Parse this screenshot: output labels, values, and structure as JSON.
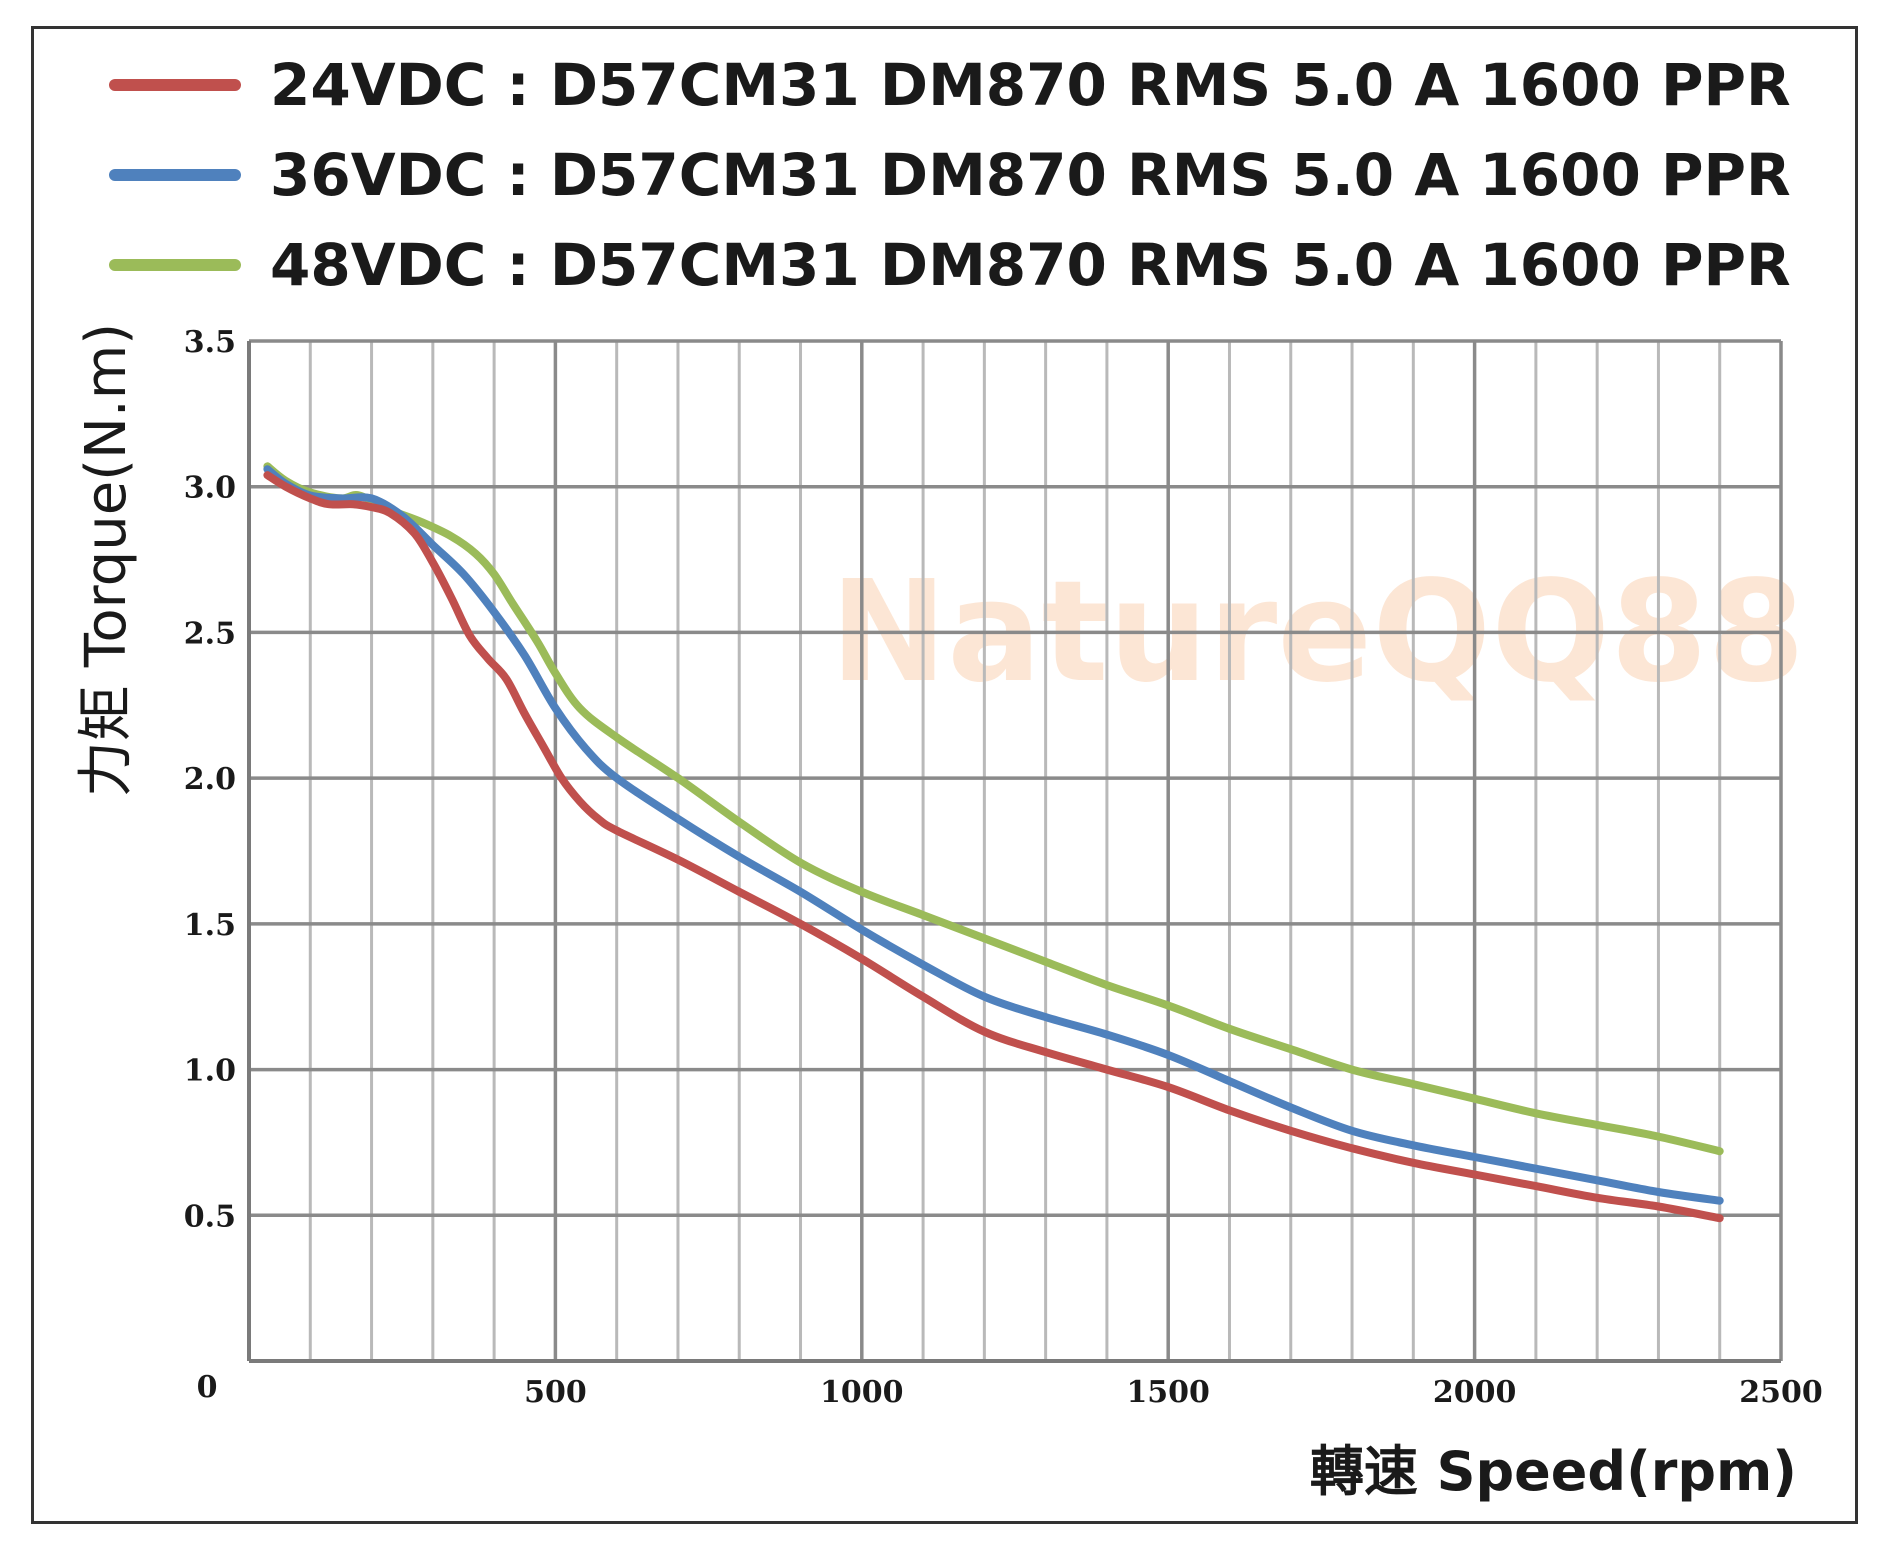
{
  "chart_data": {
    "type": "line",
    "title": "",
    "xlabel": "轉速 Speed(rpm)",
    "ylabel": "力矩 Torque(N.m)",
    "xlim": [
      0,
      2500
    ],
    "ylim": [
      0,
      3.5
    ],
    "x_ticks": [
      "0",
      "500",
      "1000",
      "1500",
      "2000",
      "2500"
    ],
    "y_ticks": [
      "0.5",
      "1.0",
      "1.5",
      "2.0",
      "2.5",
      "3.0",
      "3.5"
    ],
    "grid": true,
    "legend_position": "top",
    "watermark": "NatureQQ88",
    "series": [
      {
        "name": "24VDC : D57CM31  DM870  RMS 5.0 A  1600 PPR",
        "color": "#c0504d",
        "points": [
          [
            30,
            3.04
          ],
          [
            60,
            3.0
          ],
          [
            100,
            2.96
          ],
          [
            130,
            2.94
          ],
          [
            170,
            2.94
          ],
          [
            200,
            2.93
          ],
          [
            230,
            2.91
          ],
          [
            270,
            2.84
          ],
          [
            300,
            2.74
          ],
          [
            330,
            2.62
          ],
          [
            360,
            2.49
          ],
          [
            390,
            2.41
          ],
          [
            420,
            2.34
          ],
          [
            450,
            2.22
          ],
          [
            480,
            2.11
          ],
          [
            510,
            2.0
          ],
          [
            540,
            1.92
          ],
          [
            570,
            1.86
          ],
          [
            600,
            1.82
          ],
          [
            700,
            1.72
          ],
          [
            800,
            1.61
          ],
          [
            900,
            1.5
          ],
          [
            1000,
            1.38
          ],
          [
            1100,
            1.25
          ],
          [
            1200,
            1.13
          ],
          [
            1300,
            1.06
          ],
          [
            1400,
            1.0
          ],
          [
            1500,
            0.94
          ],
          [
            1600,
            0.86
          ],
          [
            1700,
            0.79
          ],
          [
            1800,
            0.73
          ],
          [
            1900,
            0.68
          ],
          [
            2000,
            0.64
          ],
          [
            2100,
            0.6
          ],
          [
            2200,
            0.56
          ],
          [
            2300,
            0.53
          ],
          [
            2400,
            0.49
          ]
        ]
      },
      {
        "name": "36VDC : D57CM31  DM870  RMS 5.0 A  1600 PPR",
        "color": "#4f81bd",
        "points": [
          [
            30,
            3.06
          ],
          [
            60,
            3.01
          ],
          [
            100,
            2.97
          ],
          [
            150,
            2.96
          ],
          [
            200,
            2.96
          ],
          [
            250,
            2.9
          ],
          [
            300,
            2.8
          ],
          [
            350,
            2.7
          ],
          [
            400,
            2.57
          ],
          [
            450,
            2.42
          ],
          [
            500,
            2.24
          ],
          [
            550,
            2.1
          ],
          [
            600,
            2.0
          ],
          [
            700,
            1.86
          ],
          [
            800,
            1.73
          ],
          [
            900,
            1.61
          ],
          [
            1000,
            1.48
          ],
          [
            1100,
            1.36
          ],
          [
            1200,
            1.25
          ],
          [
            1300,
            1.18
          ],
          [
            1400,
            1.12
          ],
          [
            1500,
            1.05
          ],
          [
            1600,
            0.96
          ],
          [
            1700,
            0.87
          ],
          [
            1800,
            0.79
          ],
          [
            1900,
            0.74
          ],
          [
            2000,
            0.7
          ],
          [
            2100,
            0.66
          ],
          [
            2200,
            0.62
          ],
          [
            2300,
            0.58
          ],
          [
            2400,
            0.55
          ]
        ]
      },
      {
        "name": "48VDC : D57CM31  DM870  RMS 5.0 A  1600 PPR",
        "color": "#9bbb59",
        "points": [
          [
            30,
            3.07
          ],
          [
            60,
            3.02
          ],
          [
            100,
            2.98
          ],
          [
            150,
            2.96
          ],
          [
            180,
            2.97
          ],
          [
            230,
            2.92
          ],
          [
            280,
            2.88
          ],
          [
            330,
            2.83
          ],
          [
            370,
            2.77
          ],
          [
            400,
            2.7
          ],
          [
            430,
            2.6
          ],
          [
            470,
            2.47
          ],
          [
            500,
            2.36
          ],
          [
            540,
            2.24
          ],
          [
            600,
            2.14
          ],
          [
            700,
            2.0
          ],
          [
            800,
            1.85
          ],
          [
            900,
            1.71
          ],
          [
            1000,
            1.61
          ],
          [
            1100,
            1.53
          ],
          [
            1200,
            1.45
          ],
          [
            1300,
            1.37
          ],
          [
            1400,
            1.29
          ],
          [
            1500,
            1.22
          ],
          [
            1600,
            1.14
          ],
          [
            1700,
            1.07
          ],
          [
            1800,
            1.0
          ],
          [
            1900,
            0.95
          ],
          [
            2000,
            0.9
          ],
          [
            2100,
            0.85
          ],
          [
            2200,
            0.81
          ],
          [
            2300,
            0.77
          ],
          [
            2400,
            0.72
          ]
        ]
      }
    ]
  }
}
